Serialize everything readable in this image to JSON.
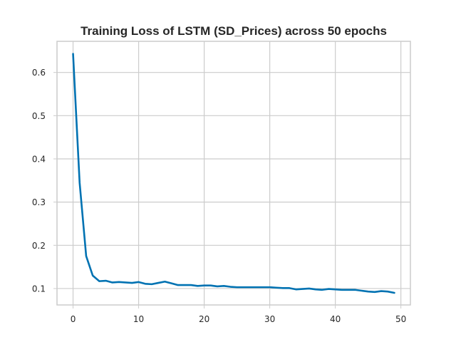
{
  "chart_data": {
    "type": "line",
    "title": "Training Loss of LSTM (SD_Prices) across 50 epochs",
    "xlabel": "",
    "ylabel": "",
    "xlim": [
      -2.45,
      51.45
    ],
    "ylim": [
      0.062,
      0.672
    ],
    "xticks": [
      0,
      10,
      20,
      30,
      40,
      50
    ],
    "yticks": [
      0.1,
      0.2,
      0.3,
      0.4,
      0.5,
      0.6
    ],
    "grid": true,
    "legend": "none",
    "series": [
      {
        "color": "#0072b2",
        "x": [
          0,
          1,
          2,
          3,
          4,
          5,
          6,
          7,
          8,
          9,
          10,
          11,
          12,
          13,
          14,
          15,
          16,
          17,
          18,
          19,
          20,
          21,
          22,
          23,
          24,
          25,
          26,
          27,
          28,
          29,
          30,
          31,
          32,
          33,
          34,
          35,
          36,
          37,
          38,
          39,
          40,
          41,
          42,
          43,
          44,
          45,
          46,
          47,
          48,
          49
        ],
        "values": [
          0.643,
          0.345,
          0.175,
          0.13,
          0.117,
          0.118,
          0.114,
          0.115,
          0.114,
          0.113,
          0.115,
          0.111,
          0.11,
          0.113,
          0.116,
          0.112,
          0.108,
          0.108,
          0.108,
          0.106,
          0.107,
          0.107,
          0.105,
          0.106,
          0.104,
          0.103,
          0.103,
          0.103,
          0.103,
          0.103,
          0.103,
          0.102,
          0.101,
          0.101,
          0.098,
          0.099,
          0.1,
          0.098,
          0.097,
          0.099,
          0.098,
          0.097,
          0.097,
          0.097,
          0.095,
          0.093,
          0.092,
          0.094,
          0.093,
          0.09
        ]
      }
    ]
  }
}
